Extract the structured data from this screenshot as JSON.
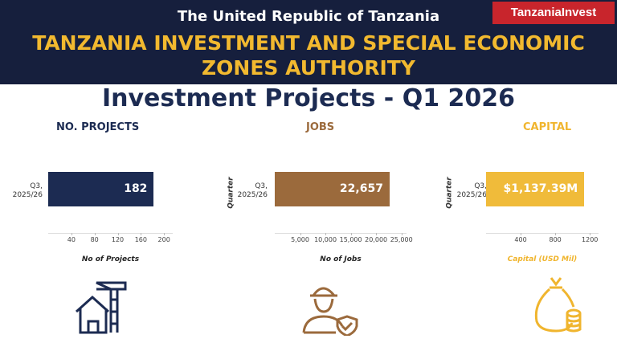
{
  "header": {
    "country": "The United Republic of Tanzania",
    "authority": "TANZANIA INVESTMENT AND SPECIAL ECONOMIC ZONES AUTHORITY",
    "logo": "TanzaniaInvest",
    "title": "Investment Projects - Q1 2026"
  },
  "chart_data": [
    {
      "type": "bar",
      "orientation": "horizontal",
      "title": "NO. PROJECTS",
      "categories": [
        "Q3, 2025/26"
      ],
      "values": [
        182
      ],
      "color": "#1c2b52",
      "title_color": "#1c2b52",
      "xlabel": "No of Projects",
      "xlim": [
        0,
        215
      ],
      "xticks": [
        40,
        80,
        120,
        160,
        200
      ]
    },
    {
      "type": "bar",
      "orientation": "horizontal",
      "title": "JOBS",
      "ylabel": "Quarter",
      "categories": [
        "Q3, 2025/26"
      ],
      "values": [
        22657
      ],
      "value_labels": [
        "22,657"
      ],
      "color": "#9b6a3c",
      "title_color": "#9b6a3c",
      "xlabel": "No of Jobs",
      "xlim": [
        0,
        26000
      ],
      "xticks": [
        {
          "value": 5000,
          "label": "5,000"
        },
        {
          "value": 10000,
          "label": "10,000"
        },
        {
          "value": 15000,
          "label": "15,000"
        },
        {
          "value": 20000,
          "label": "20,000"
        },
        {
          "value": 25000,
          "label": "25,000"
        }
      ]
    },
    {
      "type": "bar",
      "orientation": "horizontal",
      "title": "CAPITAL",
      "ylabel": "Quarter",
      "categories": [
        "Q3, 2025/26"
      ],
      "values": [
        1137.39
      ],
      "value_labels": [
        "$1,137.39M"
      ],
      "color": "#f0bb3a",
      "title_color": "#f0b52e",
      "xlabel": "Capital (USD Mil)",
      "xlabel_color": "#f0b52e",
      "xlim": [
        0,
        1300
      ],
      "xticks": [
        400,
        800,
        1200
      ]
    }
  ]
}
